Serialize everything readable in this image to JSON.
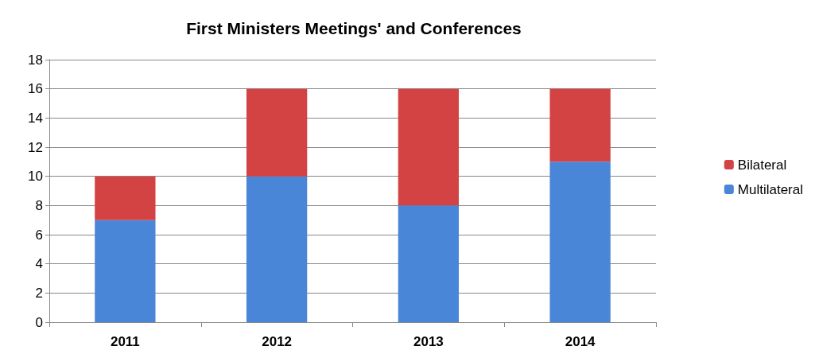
{
  "chart_data": {
    "type": "bar",
    "title": "First Ministers Meetings' and Conferences",
    "categories": [
      "2011",
      "2012",
      "2013",
      "2014"
    ],
    "stacked": true,
    "series": [
      {
        "name": "Multilateral",
        "color": "#4a86d8",
        "values": [
          7,
          10,
          8,
          11
        ]
      },
      {
        "name": "Bilateral",
        "color": "#d34343",
        "values": [
          3,
          6,
          8,
          5
        ]
      }
    ],
    "ylim": [
      0,
      18
    ],
    "yticks": [
      0,
      2,
      4,
      6,
      8,
      10,
      12,
      14,
      16,
      18
    ],
    "grid": "y",
    "legend": "right"
  }
}
